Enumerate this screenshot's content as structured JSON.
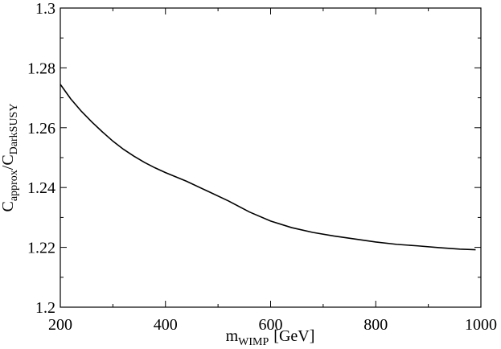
{
  "chart_data": {
    "type": "line",
    "title": "",
    "xlabel": "m",
    "xlabel_sub": "WIMP",
    "xlabel_suffix": "[GeV]",
    "ylabel_main1": "C",
    "ylabel_sub1": "approx",
    "ylabel_sep": "/C",
    "ylabel_sub2": "DarkSUSY",
    "xlim": [
      200,
      1000
    ],
    "ylim": [
      1.2,
      1.3
    ],
    "xticks": [
      200,
      400,
      600,
      800,
      1000
    ],
    "xtick_labels": [
      "200",
      "400",
      "600",
      "800",
      "1000"
    ],
    "yticks": [
      1.2,
      1.22,
      1.24,
      1.26,
      1.28,
      1.3
    ],
    "ytick_labels": [
      "1.2",
      "1.22",
      "1.24",
      "1.26",
      "1.28",
      "1.3"
    ],
    "grid": false,
    "series": [
      {
        "color": "#000000",
        "x": [
          200,
          220,
          240,
          260,
          280,
          300,
          320,
          340,
          360,
          380,
          400,
          440,
          480,
          520,
          560,
          600,
          640,
          680,
          720,
          760,
          800,
          840,
          880,
          920,
          960,
          990
        ],
        "y": [
          1.2745,
          1.2696,
          1.2655,
          1.2619,
          1.2586,
          1.2555,
          1.2528,
          1.2505,
          1.2484,
          1.2466,
          1.245,
          1.2421,
          1.2388,
          1.2355,
          1.2318,
          1.2288,
          1.2266,
          1.225,
          1.2238,
          1.2228,
          1.2218,
          1.221,
          1.2205,
          1.2199,
          1.2194,
          1.2192
        ]
      }
    ]
  }
}
